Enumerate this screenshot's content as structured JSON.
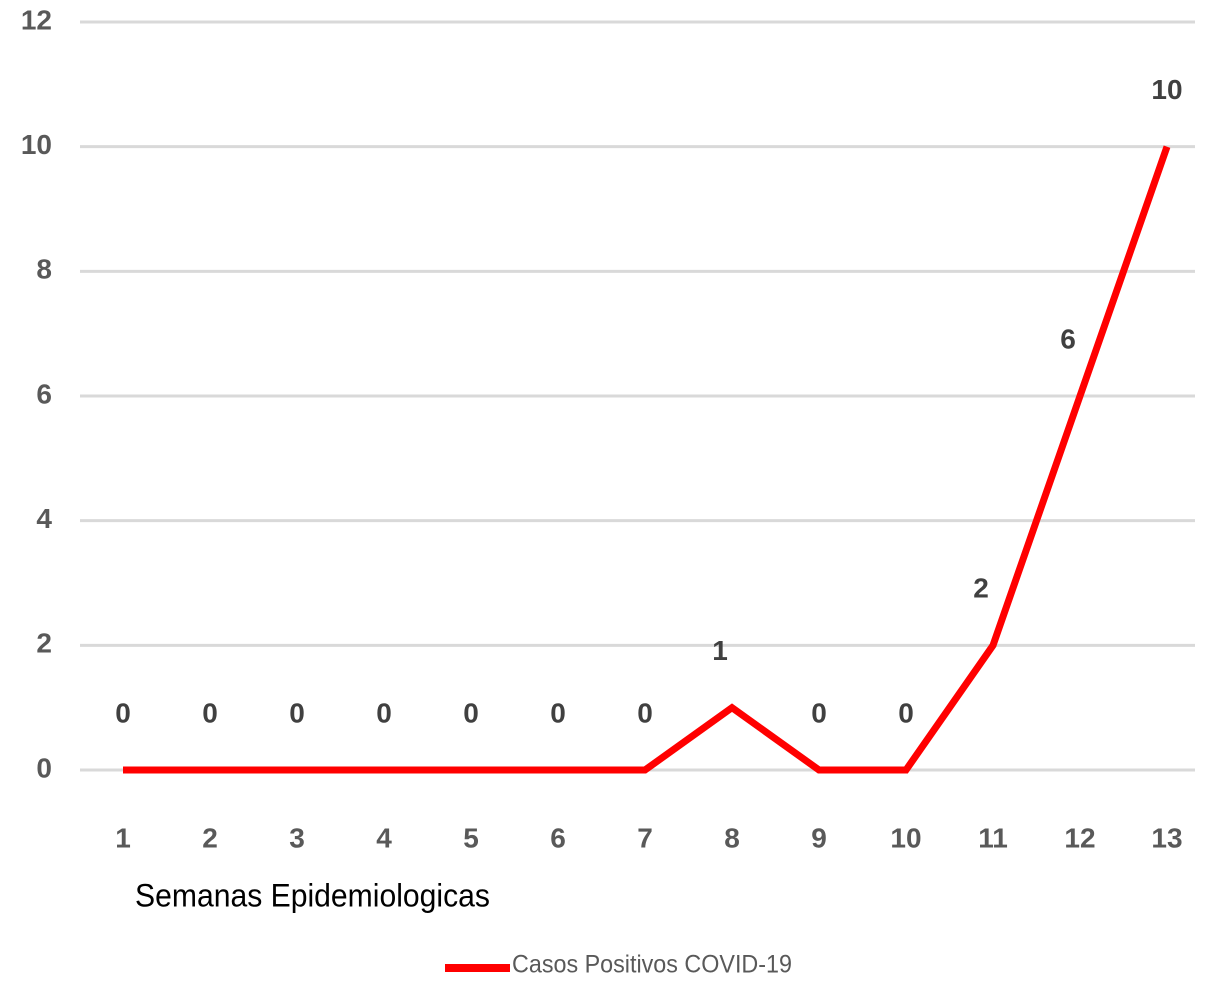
{
  "chart_data": {
    "type": "line",
    "x_label": "Semanas Epidemiologicas",
    "categories": [
      "1",
      "2",
      "3",
      "4",
      "5",
      "6",
      "7",
      "8",
      "9",
      "10",
      "11",
      "12",
      "13"
    ],
    "series": [
      {
        "name": "Casos Positivos COVID-19",
        "color": "#ff0000",
        "values": [
          0,
          0,
          0,
          0,
          0,
          0,
          0,
          1,
          0,
          0,
          2,
          6,
          10
        ]
      }
    ],
    "ylim": [
      0,
      12
    ],
    "yticks": [
      0,
      2,
      4,
      6,
      8,
      10,
      12
    ],
    "grid": true,
    "legend": "bottom",
    "data_labels": true
  }
}
